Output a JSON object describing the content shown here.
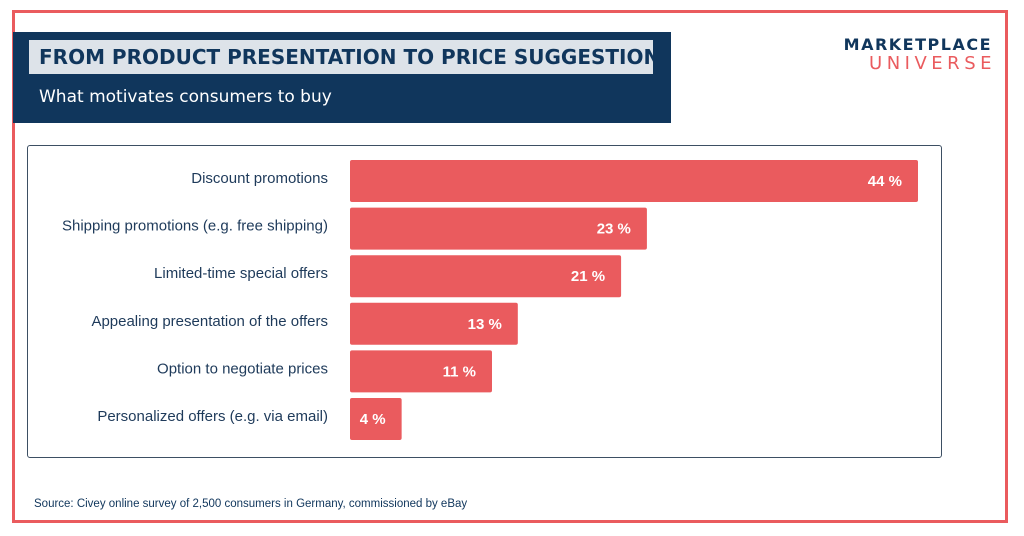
{
  "header": {
    "title": "FROM PRODUCT PRESENTATION TO PRICE SUGGESTIONS:",
    "subtitle": "What motivates consumers to buy"
  },
  "logo": {
    "line1": "MARKETPLACE",
    "line2": "UNIVERSE"
  },
  "source": "Source: Civey online survey of 2,500 consumers in Germany, commissioned by eBay",
  "colors": {
    "bar": "#ea5b5e",
    "navy": "#10365c",
    "frame": "#ea5b5e"
  },
  "chart_data": {
    "type": "bar",
    "orientation": "horizontal",
    "categories": [
      "Discount promotions",
      "Shipping promotions (e.g. free shipping)",
      "Limited-time special offers",
      "Appealing presentation of the offers",
      "Option to negotiate prices",
      "Personalized offers (e.g. via email)"
    ],
    "values": [
      44,
      23,
      21,
      13,
      11,
      4
    ],
    "value_labels": [
      "44 %",
      "23 %",
      "21 %",
      "13 %",
      "11 %",
      "4 %"
    ],
    "xlim": [
      0,
      44
    ],
    "grid": false
  }
}
